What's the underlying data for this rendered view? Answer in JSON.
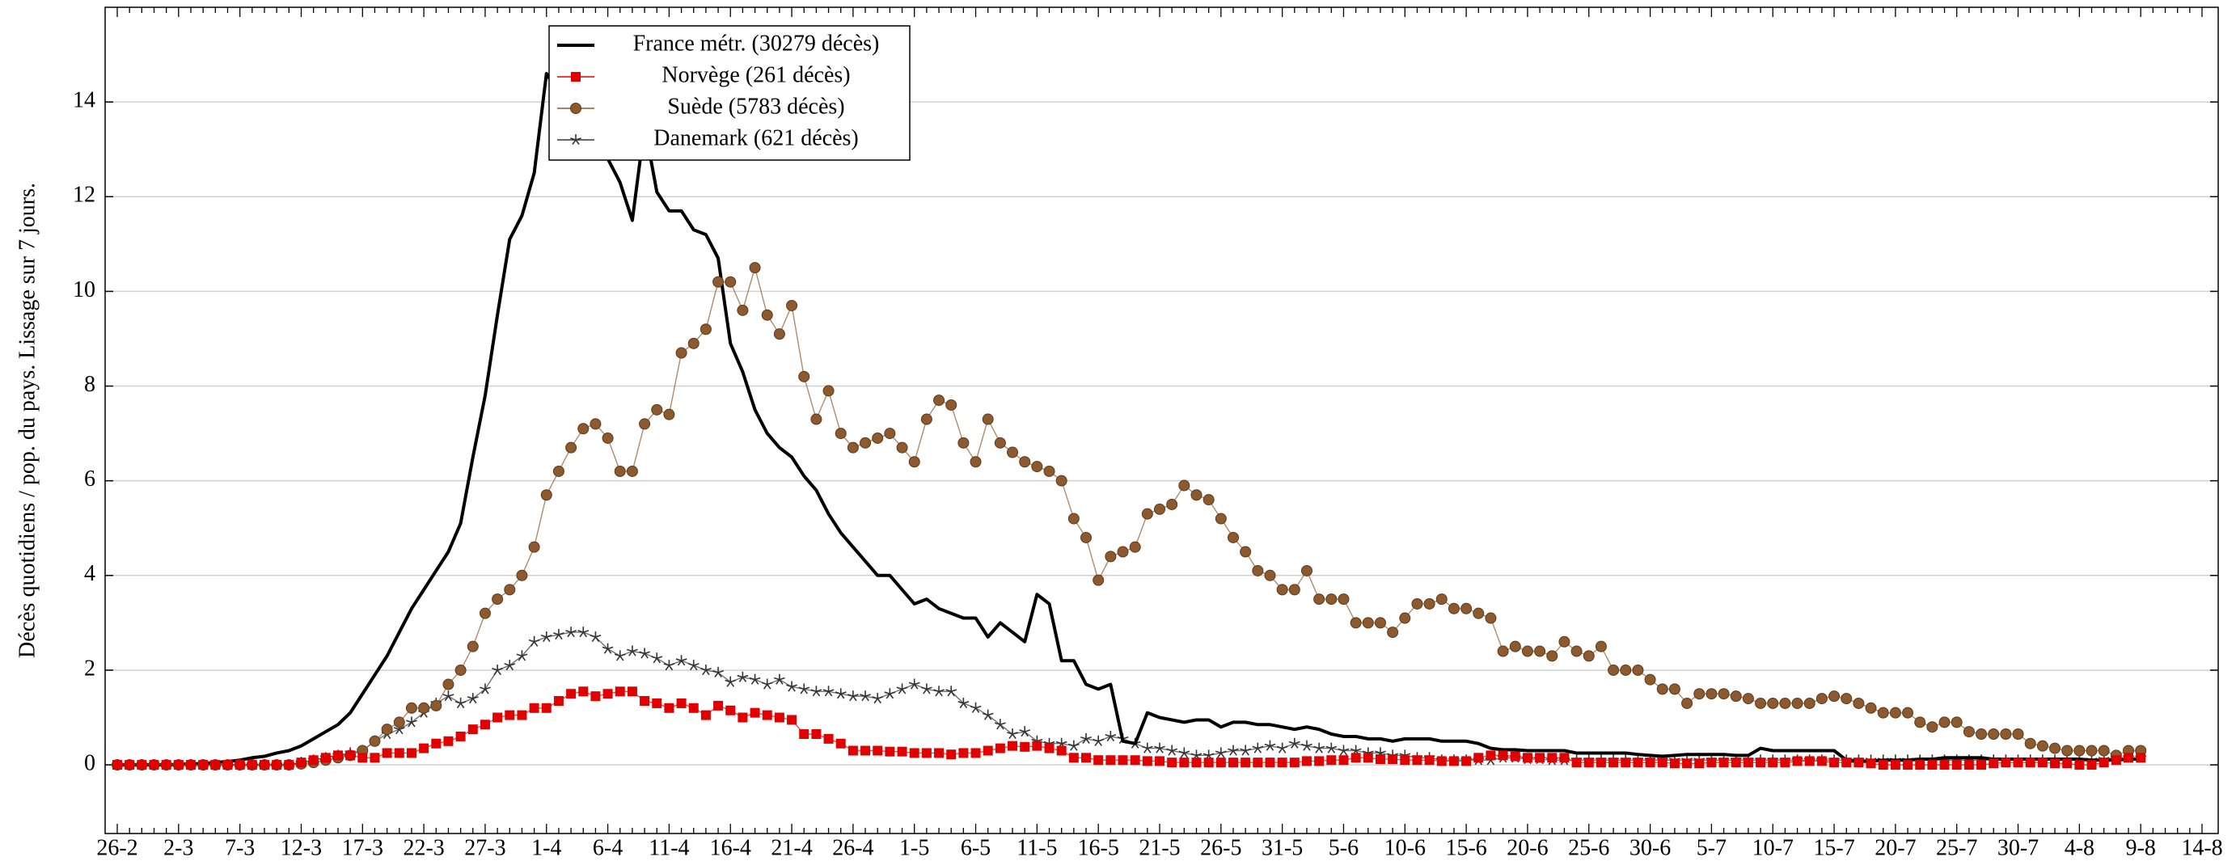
{
  "chart_data": {
    "type": "line",
    "y_label": "Décès quotidiens / pop. du pays. Lissage sur 7 jours.",
    "categories": [
      "26-2",
      null,
      null,
      null,
      null,
      "2-3",
      null,
      null,
      null,
      null,
      "7-3",
      null,
      null,
      null,
      null,
      "12-3",
      null,
      null,
      null,
      null,
      "17-3",
      null,
      null,
      null,
      null,
      "22-3",
      null,
      null,
      null,
      null,
      "27-3",
      null,
      null,
      null,
      null,
      "1-4",
      null,
      null,
      null,
      null,
      "6-4",
      null,
      null,
      null,
      null,
      "11-4",
      null,
      null,
      null,
      null,
      "16-4",
      null,
      null,
      null,
      null,
      "21-4",
      null,
      null,
      null,
      null,
      "26-4",
      null,
      null,
      null,
      null,
      "1-5",
      null,
      null,
      null,
      null,
      "6-5",
      null,
      null,
      null,
      null,
      "11-5",
      null,
      null,
      null,
      null,
      "16-5",
      null,
      null,
      null,
      null,
      "21-5",
      null,
      null,
      null,
      null,
      "26-5",
      null,
      null,
      null,
      null,
      "31-5",
      null,
      null,
      null,
      null,
      "5-6",
      null,
      null,
      null,
      null,
      "10-6",
      null,
      null,
      null,
      null,
      "15-6",
      null,
      null,
      null,
      null,
      "20-6",
      null,
      null,
      null,
      null,
      "25-6",
      null,
      null,
      null,
      null,
      "30-6",
      null,
      null,
      null,
      null,
      "5-7",
      null,
      null,
      null,
      null,
      "10-7",
      null,
      null,
      null,
      null,
      "15-7",
      null,
      null,
      null,
      null,
      "20-7",
      null,
      null,
      null,
      null,
      "25-7",
      null,
      null,
      null,
      null,
      "30-7",
      null,
      null,
      null,
      null,
      "4-8",
      null,
      null,
      null,
      null,
      "9-8",
      null,
      null,
      null,
      null,
      "14-8"
    ],
    "ylim": [
      -1.45,
      16
    ],
    "yticks": [
      0,
      2,
      4,
      6,
      8,
      10,
      12,
      14
    ],
    "grid": true,
    "series": [
      {
        "name": "France métr. (30279 décès)",
        "color": "#000000",
        "marker": "none",
        "values": [
          0,
          0,
          0,
          0,
          0,
          0.01,
          0.02,
          0.03,
          0.05,
          0.07,
          0.1,
          0.15,
          0.18,
          0.25,
          0.3,
          0.4,
          0.55,
          0.7,
          0.85,
          1.1,
          1.5,
          1.9,
          2.3,
          2.8,
          3.3,
          3.7,
          4.1,
          4.5,
          5.1,
          6.5,
          7.8,
          9.5,
          11.1,
          11.6,
          12.5,
          14.6,
          14.2,
          13.8,
          13.6,
          13.2,
          12.8,
          12.3,
          11.5,
          13.5,
          12.1,
          11.7,
          11.7,
          11.3,
          11.2,
          10.7,
          8.9,
          8.3,
          7.5,
          7.0,
          6.7,
          6.5,
          6.1,
          5.8,
          5.3,
          4.9,
          4.6,
          4.3,
          4.0,
          4.0,
          3.7,
          3.4,
          3.5,
          3.3,
          3.2,
          3.1,
          3.1,
          2.7,
          3.0,
          2.8,
          2.6,
          3.6,
          3.4,
          2.2,
          2.2,
          1.7,
          1.6,
          1.7,
          0.5,
          0.45,
          1.1,
          1.0,
          0.95,
          0.9,
          0.95,
          0.95,
          0.8,
          0.9,
          0.9,
          0.85,
          0.85,
          0.8,
          0.75,
          0.8,
          0.75,
          0.65,
          0.6,
          0.6,
          0.55,
          0.55,
          0.5,
          0.55,
          0.55,
          0.55,
          0.5,
          0.5,
          0.5,
          0.45,
          0.35,
          0.32,
          0.32,
          0.3,
          0.3,
          0.3,
          0.3,
          0.25,
          0.25,
          0.25,
          0.25,
          0.25,
          0.22,
          0.2,
          0.18,
          0.2,
          0.22,
          0.22,
          0.22,
          0.22,
          0.2,
          0.2,
          0.35,
          0.3,
          0.3,
          0.3,
          0.3,
          0.3,
          0.3,
          0.1,
          0.08,
          0.08,
          0.1,
          0.1,
          0.1,
          0.12,
          0.12,
          0.15,
          0.15,
          0.15,
          0.15,
          0.12,
          0.12,
          0.12,
          0.12,
          0.12,
          0.12,
          0.12,
          0.12,
          0.1,
          0.1,
          0.1,
          0.12,
          0.12,
          null,
          null,
          null,
          null,
          null
        ]
      },
      {
        "name": "Norvège (261 décès)",
        "color": "#e00000",
        "marker": "square",
        "values": [
          0,
          0,
          0,
          0,
          0,
          0,
          0,
          0,
          0,
          0,
          0,
          0,
          0,
          0,
          0,
          0.05,
          0.1,
          0.15,
          0.2,
          0.2,
          0.15,
          0.15,
          0.25,
          0.25,
          0.25,
          0.35,
          0.45,
          0.5,
          0.6,
          0.75,
          0.85,
          1.0,
          1.05,
          1.05,
          1.2,
          1.2,
          1.35,
          1.5,
          1.55,
          1.45,
          1.5,
          1.55,
          1.55,
          1.35,
          1.3,
          1.2,
          1.3,
          1.2,
          1.05,
          1.25,
          1.15,
          1.0,
          1.1,
          1.05,
          1.0,
          0.95,
          0.65,
          0.65,
          0.55,
          0.45,
          0.3,
          0.3,
          0.3,
          0.28,
          0.28,
          0.25,
          0.25,
          0.25,
          0.22,
          0.25,
          0.25,
          0.3,
          0.35,
          0.4,
          0.38,
          0.4,
          0.35,
          0.3,
          0.15,
          0.15,
          0.1,
          0.1,
          0.1,
          0.1,
          0.08,
          0.08,
          0.05,
          0.05,
          0.05,
          0.05,
          0.05,
          0.05,
          0.05,
          0.05,
          0.05,
          0.05,
          0.05,
          0.08,
          0.08,
          0.1,
          0.1,
          0.15,
          0.15,
          0.12,
          0.12,
          0.1,
          0.1,
          0.1,
          0.08,
          0.08,
          0.08,
          0.15,
          0.2,
          0.2,
          0.18,
          0.15,
          0.15,
          0.15,
          0.15,
          0.05,
          0.05,
          0.05,
          0.05,
          0.05,
          0.05,
          0.05,
          0.05,
          0.03,
          0.03,
          0.03,
          0.05,
          0.05,
          0.05,
          0.05,
          0.05,
          0.05,
          0.05,
          0.08,
          0.08,
          0.08,
          0.05,
          0.05,
          0.05,
          0.03,
          0,
          0,
          0,
          0,
          0,
          0,
          0,
          0,
          0,
          0.03,
          0.05,
          0.05,
          0.05,
          0.05,
          0.03,
          0.03,
          0,
          0,
          0.05,
          0.1,
          0.15,
          0.15,
          null,
          null,
          null,
          null,
          null
        ]
      },
      {
        "name": "Suède (5783 décès)",
        "color": "#8c5a2e",
        "marker": "circle",
        "values": [
          0,
          0,
          0,
          0,
          0,
          0,
          0,
          0,
          0,
          0,
          0,
          0,
          0,
          0,
          0,
          0.02,
          0.05,
          0.1,
          0.15,
          0.2,
          0.3,
          0.5,
          0.75,
          0.9,
          1.2,
          1.2,
          1.25,
          1.7,
          2.0,
          2.5,
          3.2,
          3.5,
          3.7,
          4.0,
          4.6,
          5.7,
          6.2,
          6.7,
          7.1,
          7.2,
          6.9,
          6.2,
          6.2,
          7.2,
          7.5,
          7.4,
          8.7,
          8.9,
          9.2,
          10.2,
          10.2,
          9.6,
          10.5,
          9.5,
          9.1,
          9.7,
          8.2,
          7.3,
          7.9,
          7.0,
          6.7,
          6.8,
          6.9,
          7.0,
          6.7,
          6.4,
          7.3,
          7.7,
          7.6,
          6.8,
          6.4,
          7.3,
          6.8,
          6.6,
          6.4,
          6.3,
          6.2,
          6.0,
          5.2,
          4.8,
          3.9,
          4.4,
          4.5,
          4.6,
          5.3,
          5.4,
          5.5,
          5.9,
          5.7,
          5.6,
          5.2,
          4.8,
          4.5,
          4.1,
          4.0,
          3.7,
          3.7,
          4.1,
          3.5,
          3.5,
          3.5,
          3.0,
          3.0,
          3.0,
          2.8,
          3.1,
          3.4,
          3.4,
          3.5,
          3.3,
          3.3,
          3.2,
          3.1,
          2.4,
          2.5,
          2.4,
          2.4,
          2.3,
          2.6,
          2.4,
          2.3,
          2.5,
          2.0,
          2.0,
          2.0,
          1.8,
          1.6,
          1.6,
          1.3,
          1.5,
          1.5,
          1.5,
          1.45,
          1.4,
          1.3,
          1.3,
          1.3,
          1.3,
          1.3,
          1.4,
          1.45,
          1.4,
          1.3,
          1.2,
          1.1,
          1.1,
          1.1,
          0.9,
          0.8,
          0.9,
          0.9,
          0.7,
          0.65,
          0.65,
          0.65,
          0.65,
          0.45,
          0.4,
          0.35,
          0.3,
          0.3,
          0.3,
          0.3,
          0.2,
          0.3,
          0.3,
          null,
          null,
          null,
          null,
          null
        ]
      },
      {
        "name": "Danemark (621 décès)",
        "color": "#333333",
        "marker": "star",
        "values": [
          0,
          0,
          0,
          0,
          0,
          0,
          0,
          0,
          0,
          0,
          0,
          0,
          0,
          0,
          0,
          0.05,
          0.1,
          0.15,
          0.2,
          0.25,
          0.3,
          0.5,
          0.65,
          0.75,
          0.9,
          1.1,
          1.3,
          1.45,
          1.3,
          1.4,
          1.6,
          2.0,
          2.1,
          2.3,
          2.6,
          2.7,
          2.75,
          2.8,
          2.8,
          2.7,
          2.45,
          2.3,
          2.4,
          2.35,
          2.25,
          2.1,
          2.2,
          2.1,
          2.0,
          1.95,
          1.75,
          1.85,
          1.8,
          1.7,
          1.8,
          1.65,
          1.6,
          1.55,
          1.55,
          1.5,
          1.45,
          1.45,
          1.4,
          1.5,
          1.6,
          1.7,
          1.6,
          1.55,
          1.55,
          1.3,
          1.2,
          1.05,
          0.85,
          0.65,
          0.7,
          0.5,
          0.45,
          0.45,
          0.4,
          0.55,
          0.5,
          0.6,
          0.55,
          0.45,
          0.35,
          0.35,
          0.3,
          0.25,
          0.2,
          0.2,
          0.25,
          0.3,
          0.3,
          0.35,
          0.4,
          0.35,
          0.45,
          0.4,
          0.35,
          0.35,
          0.3,
          0.3,
          0.25,
          0.25,
          0.2,
          0.2,
          0.15,
          0.15,
          0.1,
          0.1,
          0.1,
          0.1,
          0.1,
          0.15,
          0.15,
          0.12,
          0.12,
          0.1,
          0.1,
          0.1,
          0.1,
          0.1,
          0.1,
          0.1,
          0.1,
          0.1,
          0.1,
          0.1,
          0.1,
          0.1,
          0.1,
          0.1,
          0.1,
          0.1,
          0.1,
          0.1,
          0.1,
          0.1,
          0.1,
          0.1,
          0.1,
          0.1,
          0.1,
          0.1,
          0.1,
          0.1,
          0.1,
          0.1,
          0.1,
          0.1,
          0.1,
          0.1,
          0.1,
          0.1,
          0.1,
          0.1,
          0.1,
          0.1,
          0.1,
          0.1,
          0.1,
          0.1,
          0.12,
          0.15,
          0.15,
          0.15,
          null,
          null,
          null,
          null,
          null
        ]
      }
    ]
  }
}
